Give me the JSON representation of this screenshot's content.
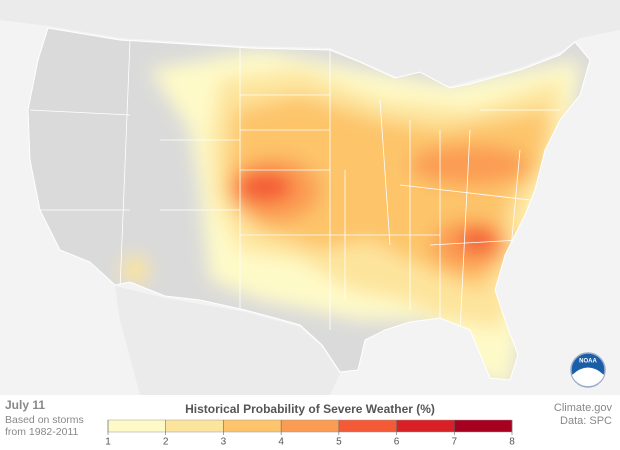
{
  "date": "July 11",
  "note_lines": [
    "Based on storms",
    "from 1982-2011"
  ],
  "legend": {
    "title": "Historical Probability of Severe Weather (%)",
    "ticks": [
      1,
      2,
      3,
      4,
      5,
      6,
      7,
      8
    ],
    "colors": [
      "#fefac8",
      "#fde49c",
      "#fdc46b",
      "#fb9c52",
      "#f45a36",
      "#d92026",
      "#a8001f"
    ]
  },
  "credits": [
    "Climate.gov",
    "Data: SPC"
  ],
  "logo_text": "NOAA"
}
